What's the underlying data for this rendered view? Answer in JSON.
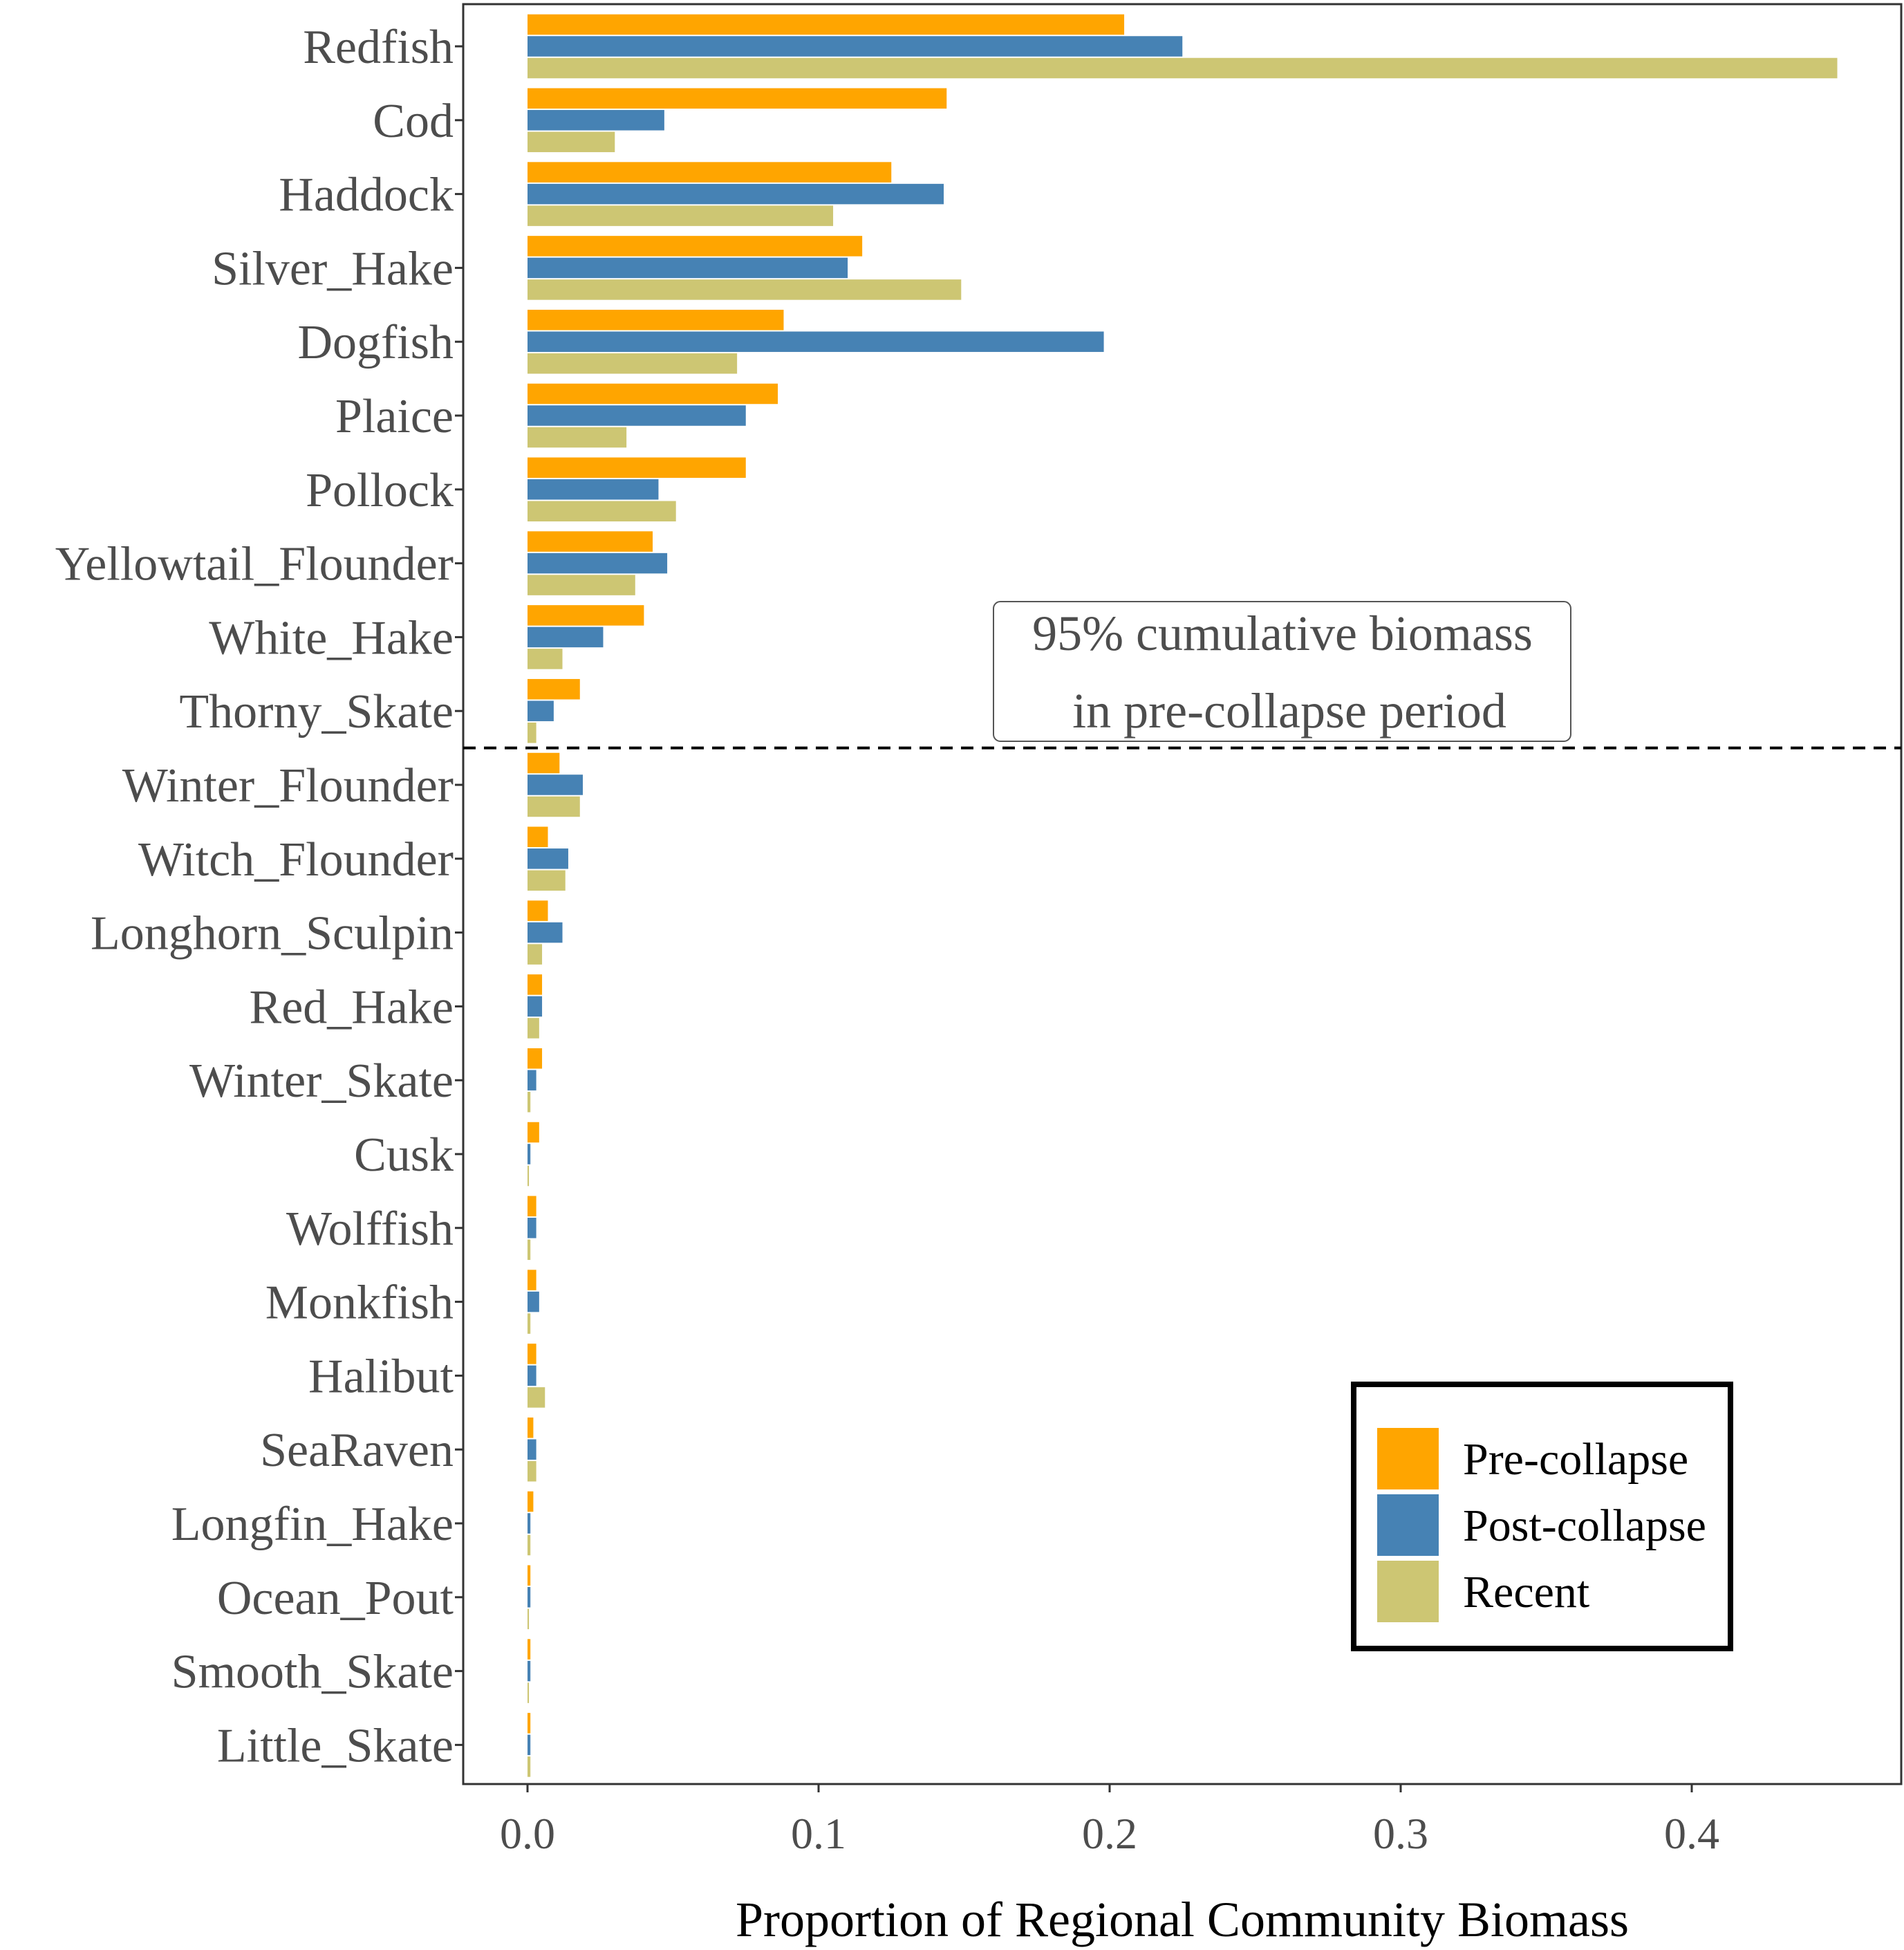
{
  "chart_data": {
    "type": "bar",
    "orientation": "horizontal",
    "xlabel": "Proportion of Regional Community Biomass",
    "ylabel": "",
    "xlim": [
      -0.022,
      0.472
    ],
    "xticks": [
      0.0,
      0.1,
      0.2,
      0.3,
      0.4
    ],
    "xtick_labels": [
      "0.0",
      "0.1",
      "0.2",
      "0.3",
      "0.4"
    ],
    "grid": false,
    "categories": [
      "Redfish",
      "Cod",
      "Haddock",
      "Silver_Hake",
      "Dogfish",
      "Plaice",
      "Pollock",
      "Yellowtail_Flounder",
      "White_Hake",
      "Thorny_Skate",
      "Winter_Flounder",
      "Witch_Flounder",
      "Longhorn_Sculpin",
      "Red_Hake",
      "Winter_Skate",
      "Cusk",
      "Wolffish",
      "Monkfish",
      "Halibut",
      "SeaRaven",
      "Longfin_Hake",
      "Ocean_Pout",
      "Smooth_Skate",
      "Little_Skate"
    ],
    "series": [
      {
        "name": "Pre-collapse",
        "color": "#FFA500",
        "values": [
          0.205,
          0.144,
          0.125,
          0.115,
          0.088,
          0.086,
          0.075,
          0.043,
          0.04,
          0.018,
          0.011,
          0.007,
          0.007,
          0.005,
          0.005,
          0.004,
          0.003,
          0.003,
          0.003,
          0.002,
          0.002,
          0.001,
          0.001,
          0.001
        ]
      },
      {
        "name": "Post-collapse",
        "color": "#4682B4",
        "values": [
          0.225,
          0.047,
          0.143,
          0.11,
          0.198,
          0.075,
          0.045,
          0.048,
          0.026,
          0.009,
          0.019,
          0.014,
          0.012,
          0.005,
          0.003,
          0.001,
          0.003,
          0.004,
          0.003,
          0.003,
          0.001,
          0.001,
          0.001,
          0.001
        ]
      },
      {
        "name": "Recent",
        "color": "#CDC673",
        "values": [
          0.45,
          0.03,
          0.105,
          0.149,
          0.072,
          0.034,
          0.051,
          0.037,
          0.012,
          0.003,
          0.018,
          0.013,
          0.005,
          0.004,
          0.001,
          0.0005,
          0.001,
          0.001,
          0.006,
          0.003,
          0.001,
          0.0005,
          0.0005,
          0.001
        ]
      }
    ],
    "cutoff": {
      "after_category": "Thorny_Skate",
      "line_style": "dashed",
      "label_lines": [
        "95% cumulative biomass",
        "in pre-collapse period"
      ]
    },
    "legend": {
      "position": "bottom-right",
      "entries": [
        "Pre-collapse",
        "Post-collapse",
        "Recent"
      ]
    }
  }
}
